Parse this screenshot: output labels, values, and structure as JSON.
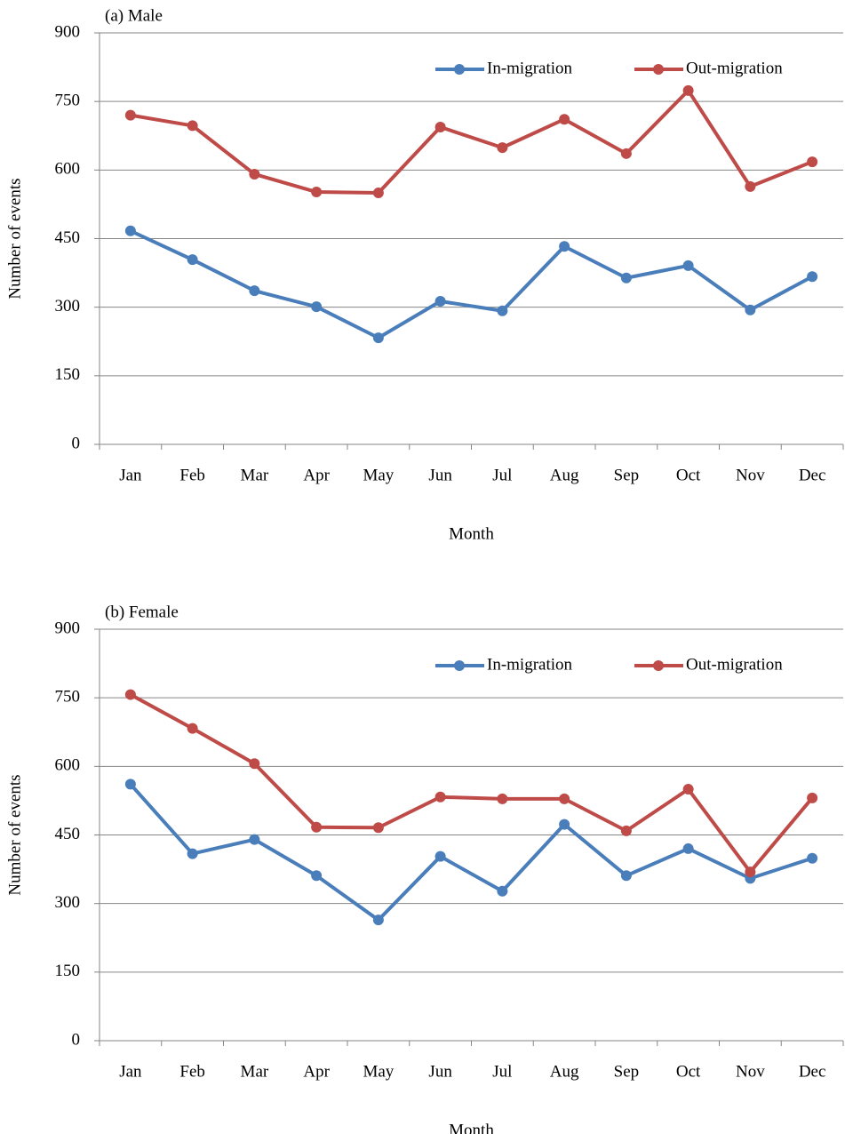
{
  "chart_data": [
    {
      "type": "line",
      "title": "(a) Male",
      "xlabel": "Month",
      "ylabel": "Number of events",
      "categories": [
        "Jan",
        "Feb",
        "Mar",
        "Apr",
        "May",
        "Jun",
        "Jul",
        "Aug",
        "Sep",
        "Oct",
        "Nov",
        "Dec"
      ],
      "series": [
        {
          "name": "In-migration",
          "color": "#4a7ebb",
          "values": [
            467,
            404,
            336,
            301,
            233,
            313,
            292,
            433,
            364,
            391,
            294,
            367
          ]
        },
        {
          "name": "Out-migration",
          "color": "#be4b48",
          "values": [
            720,
            697,
            591,
            552,
            550,
            694,
            649,
            711,
            636,
            774,
            564,
            618
          ]
        }
      ],
      "ylim": [
        0,
        900
      ],
      "yticks": [
        0,
        150,
        300,
        450,
        600,
        750,
        900
      ],
      "grid": true,
      "legend": "top-right"
    },
    {
      "type": "line",
      "title": "(b) Female",
      "xlabel": "Month",
      "ylabel": "Number of events",
      "categories": [
        "Jan",
        "Feb",
        "Mar",
        "Apr",
        "May",
        "Jun",
        "Jul",
        "Aug",
        "Sep",
        "Oct",
        "Nov",
        "Dec"
      ],
      "series": [
        {
          "name": "In-migration",
          "color": "#4a7ebb",
          "values": [
            561,
            409,
            440,
            361,
            264,
            403,
            327,
            473,
            361,
            420,
            355,
            399
          ]
        },
        {
          "name": "Out-migration",
          "color": "#be4b48",
          "values": [
            757,
            683,
            606,
            467,
            466,
            533,
            529,
            529,
            459,
            550,
            369,
            531
          ]
        }
      ],
      "ylim": [
        0,
        900
      ],
      "yticks": [
        0,
        150,
        300,
        450,
        600,
        750,
        900
      ],
      "grid": true,
      "legend": "top-right"
    }
  ]
}
